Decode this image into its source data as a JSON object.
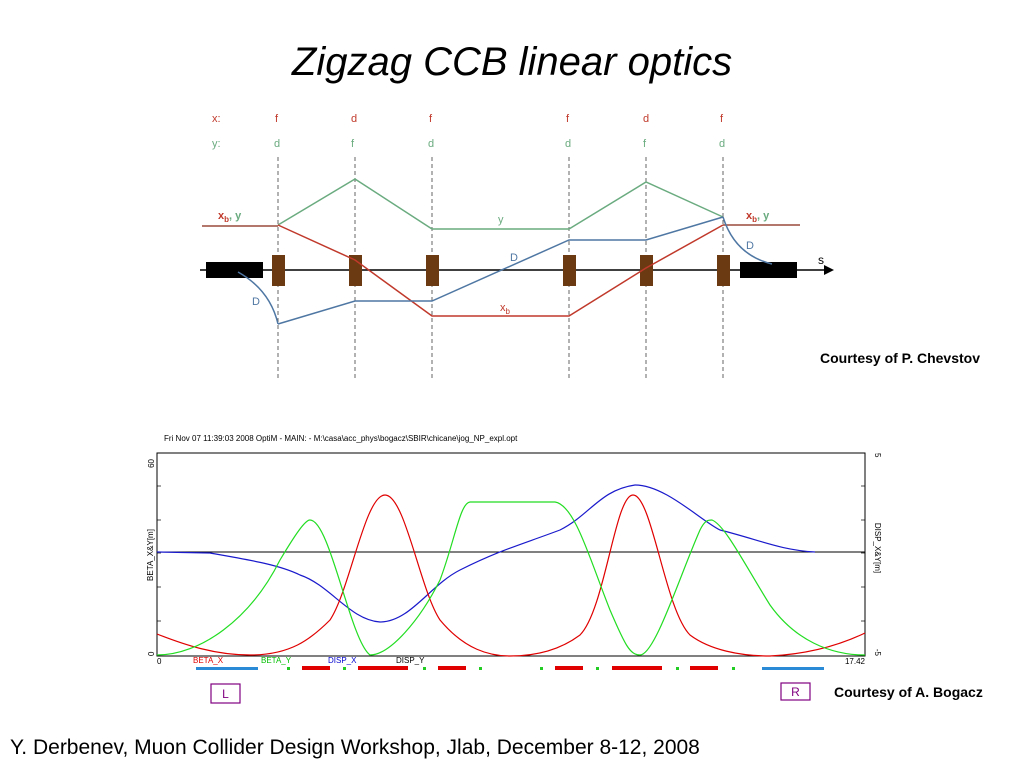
{
  "slide": {
    "title": "Zigzag CCB linear optics",
    "credit_top": "Courtesy of P. Chevstov",
    "credit_bottom": "Courtesy of A. Bogacz",
    "footer": "Y. Derbenev, Muon Collider Design Workshop, Jlab, December 8-12, 2008"
  },
  "diagram": {
    "row_x_label": "x:",
    "row_y_label": "y:",
    "x_focus": [
      "f",
      "d",
      "f",
      "f",
      "d",
      "f"
    ],
    "y_focus": [
      "d",
      "f",
      "d",
      "d",
      "f",
      "d"
    ],
    "label_xb_y_left": "x",
    "label_xb_y_left_sub": "b",
    "label_xb_y_left_tail": ", y",
    "label_xb_y_right": "x",
    "label_xb_y_right_sub": "b",
    "label_xb_y_right_tail": ", y",
    "label_y": "y",
    "label_D_mid": "D",
    "label_D_left": "D",
    "label_D_right": "D",
    "label_xb": "x",
    "label_xb_sub": "b",
    "label_s": "s",
    "colors": {
      "x": "#c0392b",
      "y": "#6aab7f",
      "D": "#4f77a3",
      "magnet": "#6b3a12"
    }
  },
  "optim": {
    "header": "Fri Nov 07 11:39:03 2008    OptiM - MAIN:  - M:\\casa\\acc_phys\\bogacz\\SBIR\\chicane\\jog_NP_expl.opt",
    "left_axis_label": "BETA_X&Y[m]",
    "right_axis_label": "DISP_X&Y[m]",
    "left_ticks": [
      "60",
      "0"
    ],
    "right_ticks": [
      "5",
      "-5"
    ],
    "x_start": "0",
    "x_end": "17.42",
    "legend": [
      {
        "label": "BETA_X",
        "color": "#e00000"
      },
      {
        "label": "BETA_Y",
        "color": "#00c000"
      },
      {
        "label": "DISP_X",
        "color": "#0000d0"
      },
      {
        "label": "DISP_Y",
        "color": "#000000"
      }
    ],
    "box_L": "L",
    "box_R": "R",
    "colors": {
      "beta_x": "#e00000",
      "beta_y": "#22dd22",
      "disp_x": "#1a1acc",
      "disp_y": "#000000"
    }
  }
}
